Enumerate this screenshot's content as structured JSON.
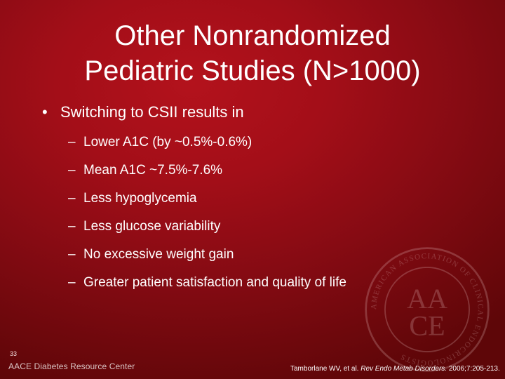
{
  "slide": {
    "title_line1": "Other Nonrandomized",
    "title_line2": "Pediatric Studies (N>1000)",
    "main_bullet_symbol": "•",
    "main_bullet": "Switching to CSII results in",
    "sub_dash": "–",
    "sub_bullets": [
      "Lower A1C (by ~0.5%-0.6%)",
      "Mean A1C ~7.5%-7.6%",
      "Less hypoglycemia",
      "Less glucose variability",
      "No excessive weight gain",
      "Greater patient satisfaction and quality of life"
    ],
    "slide_number": "33",
    "brand": "AACE Diabetes Resource Center",
    "citation": {
      "authors": "Tamborlane WV, et al.",
      "journal": "Rev Endo Metab Disorders.",
      "details": "2006;7:205-213."
    },
    "seal": {
      "monogram_top": "AA",
      "monogram_bottom": "CE",
      "ring_text": "AMERICAN ASSOCIATION OF CLINICAL ENDOCRINOLOGISTS",
      "color": "#f3d6d6"
    }
  }
}
